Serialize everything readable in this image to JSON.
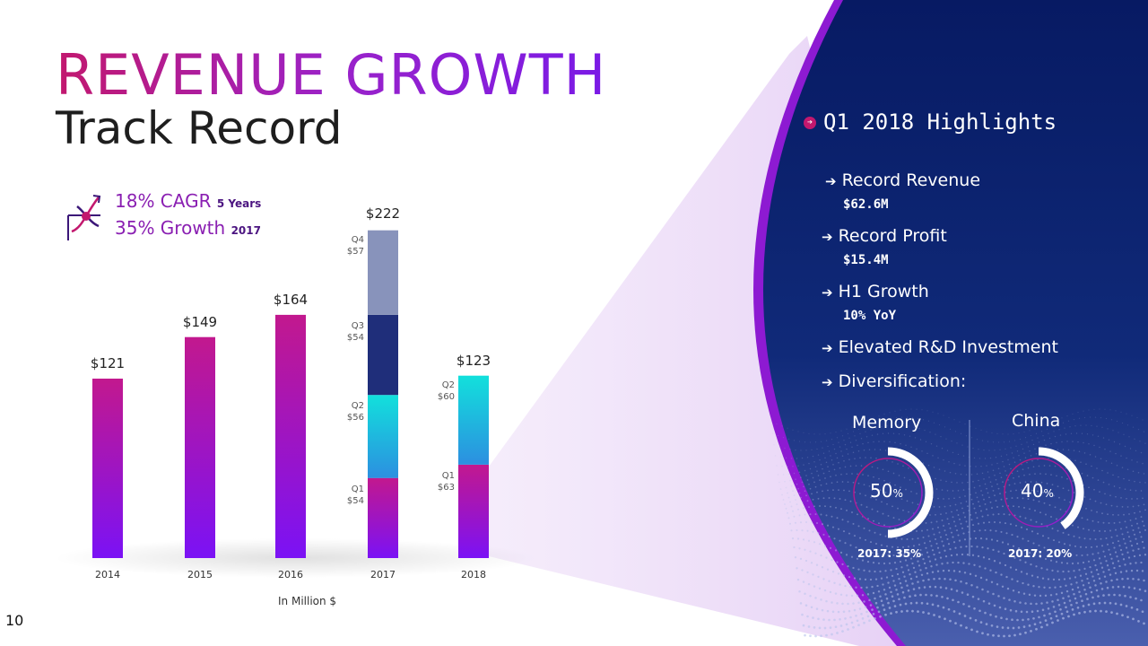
{
  "header": {
    "title": "REVENUE GROWTH",
    "subtitle": "Track Record",
    "page_number": "10"
  },
  "kpis": {
    "cagr_value": "18% CAGR",
    "cagr_period": "5 Years",
    "growth_value": "35% Growth",
    "growth_period": "2017"
  },
  "chart_unit": "In Million $",
  "chart_data": {
    "type": "bar",
    "categories": [
      "2014",
      "2015",
      "2016",
      "2017",
      "2018"
    ],
    "values": [
      121,
      149,
      164,
      222,
      123
    ],
    "value_labels": [
      "$121",
      "$149",
      "$164",
      "$222",
      "$123"
    ],
    "ylim": [
      0,
      240
    ],
    "stacked_quarters": [
      {
        "category": "2017",
        "segments": [
          {
            "quarter": "Q1",
            "value": 54,
            "label": "$54",
            "color": "#c2186e"
          },
          {
            "quarter": "Q2",
            "value": 56,
            "label": "$56",
            "color": "#12d8e0"
          },
          {
            "quarter": "Q3",
            "value": 54,
            "label": "$54",
            "color": "#1f2e7a"
          },
          {
            "quarter": "Q4",
            "value": 57,
            "label": "$57",
            "color": "#8893bb"
          }
        ]
      },
      {
        "category": "2018",
        "segments": [
          {
            "quarter": "Q1",
            "value": 63,
            "label": "$63",
            "color": "#c2186e"
          },
          {
            "quarter": "Q2",
            "value": 60,
            "label": "$60",
            "color": "#12d8e0"
          }
        ]
      }
    ],
    "bar_gradient": [
      "#c2188e",
      "#7b12f5"
    ],
    "grid": false
  },
  "highlights": {
    "title": "Q1 2018 Highlights",
    "items": [
      {
        "label": "Record Revenue",
        "value": "$62.6M"
      },
      {
        "label": "Record Profit",
        "value": "$15.4M"
      },
      {
        "label": "H1 Growth",
        "value": "10% YoY"
      },
      {
        "label": "Elevated R&D Investment",
        "value": ""
      },
      {
        "label": "Diversification:",
        "value": ""
      }
    ],
    "diversification": [
      {
        "label": "Memory",
        "percent": 50,
        "pct_num": "50",
        "pct_sign": "%",
        "prior": "2017: 35%"
      },
      {
        "label": "China",
        "percent": 40,
        "pct_num": "40",
        "pct_sign": "%",
        "prior": "2017: 20%"
      }
    ]
  },
  "colors": {
    "accent_magenta": "#c2186e",
    "accent_purple": "#7a1ae6",
    "panel_navy": "#0d1d66"
  }
}
